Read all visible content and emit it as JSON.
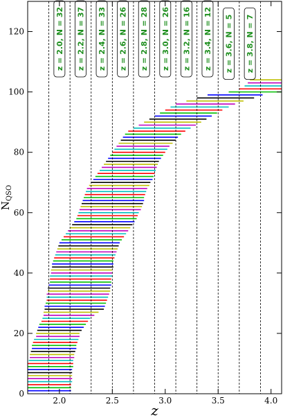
{
  "chart_data": {
    "type": "line",
    "title": "",
    "xlabel": "z",
    "ylabel": "N",
    "ylabel_sub": "QSO",
    "xlim": [
      1.7,
      4.1
    ],
    "ylim": [
      0,
      130
    ],
    "grid": false,
    "x_ticks": [
      2.0,
      2.5,
      3.0,
      3.5,
      4.0
    ],
    "x_tick_labels": [
      "2.0",
      "2.5",
      "3.0",
      "3.5",
      "4.0"
    ],
    "y_ticks": [
      0,
      20,
      40,
      60,
      80,
      100,
      120
    ],
    "y_tick_labels": [
      "0",
      "20",
      "40",
      "60",
      "80",
      "100",
      "120"
    ],
    "bin_edges": [
      1.9,
      2.1,
      2.3,
      2.5,
      2.7,
      2.9,
      3.1,
      3.3,
      3.5,
      3.7,
      3.9
    ],
    "bin_labels": [
      "z = 2.0, N = 32",
      "z = 2.2, N = 37",
      "z = 2.4, N = 33",
      "z = 2.6, N = 26",
      "z = 2.8, N = 28",
      "z = 3.0, N = 26",
      "z = 3.2, N = 16",
      "z = 3.4, N = 12",
      "z = 3.6, N = 5",
      "z = 3.8, N = 7"
    ],
    "colors": [
      "#0000ff",
      "#00bf00",
      "#ff0000",
      "#00bfbf",
      "#bf00bf",
      "#bfbf00",
      "#000000"
    ],
    "segments": [
      [
        1.7,
        2.11
      ],
      [
        1.7,
        2.11
      ],
      [
        1.7,
        2.11
      ],
      [
        1.7,
        2.12
      ],
      [
        1.7,
        2.12
      ],
      [
        1.7,
        2.12
      ],
      [
        1.7,
        2.12
      ],
      [
        1.7,
        2.12
      ],
      [
        1.7,
        2.13
      ],
      [
        1.7,
        2.13
      ],
      [
        1.71,
        2.13
      ],
      [
        1.72,
        2.14
      ],
      [
        1.72,
        2.14
      ],
      [
        1.73,
        2.15
      ],
      [
        1.74,
        2.16
      ],
      [
        1.74,
        2.16
      ],
      [
        1.75,
        2.17
      ],
      [
        1.76,
        2.18
      ],
      [
        1.78,
        2.19
      ],
      [
        1.78,
        2.19
      ],
      [
        1.79,
        2.21
      ],
      [
        1.8,
        2.23
      ],
      [
        1.81,
        2.25
      ],
      [
        1.83,
        2.27
      ],
      [
        1.84,
        2.29
      ],
      [
        1.85,
        2.33
      ],
      [
        1.85,
        2.37
      ],
      [
        1.86,
        2.42
      ],
      [
        1.86,
        2.43
      ],
      [
        1.87,
        2.44
      ],
      [
        1.88,
        2.45
      ],
      [
        1.88,
        2.46
      ],
      [
        1.88,
        2.47
      ],
      [
        1.89,
        2.48
      ],
      [
        1.89,
        2.48
      ],
      [
        1.9,
        2.49
      ],
      [
        1.91,
        2.49
      ],
      [
        1.91,
        2.49
      ],
      [
        1.91,
        2.5
      ],
      [
        1.92,
        2.5
      ],
      [
        1.92,
        2.5
      ],
      [
        1.93,
        2.51
      ],
      [
        1.93,
        2.51
      ],
      [
        1.94,
        2.51
      ],
      [
        1.95,
        2.52
      ],
      [
        1.96,
        2.53
      ],
      [
        1.97,
        2.54
      ],
      [
        1.98,
        2.55
      ],
      [
        1.99,
        2.56
      ],
      [
        2.0,
        2.57
      ],
      [
        2.02,
        2.59
      ],
      [
        2.04,
        2.61
      ],
      [
        2.06,
        2.63
      ],
      [
        2.08,
        2.65
      ],
      [
        2.1,
        2.67
      ],
      [
        2.12,
        2.69
      ],
      [
        2.14,
        2.71
      ],
      [
        2.16,
        2.73
      ],
      [
        2.17,
        2.74
      ],
      [
        2.18,
        2.75
      ],
      [
        2.19,
        2.77
      ],
      [
        2.2,
        2.78
      ],
      [
        2.21,
        2.79
      ],
      [
        2.22,
        2.8
      ],
      [
        2.23,
        2.8
      ],
      [
        2.24,
        2.81
      ],
      [
        2.25,
        2.82
      ],
      [
        2.26,
        2.83
      ],
      [
        2.28,
        2.85
      ],
      [
        2.3,
        2.86
      ],
      [
        2.32,
        2.88
      ],
      [
        2.34,
        2.89
      ],
      [
        2.36,
        2.9
      ],
      [
        2.38,
        2.91
      ],
      [
        2.4,
        2.92
      ],
      [
        2.42,
        2.93
      ],
      [
        2.44,
        2.94
      ],
      [
        2.46,
        2.96
      ],
      [
        2.48,
        2.98
      ],
      [
        2.5,
        3.0
      ],
      [
        2.52,
        3.02
      ],
      [
        2.54,
        3.04
      ],
      [
        2.56,
        3.07
      ],
      [
        2.58,
        3.1
      ],
      [
        2.6,
        3.12
      ],
      [
        2.62,
        3.15
      ],
      [
        2.65,
        3.19
      ],
      [
        2.7,
        3.24
      ],
      [
        2.75,
        3.29
      ],
      [
        2.8,
        3.34
      ],
      [
        2.85,
        3.39
      ],
      [
        2.9,
        3.44
      ],
      [
        2.95,
        3.49
      ],
      [
        3.0,
        3.54
      ],
      [
        3.05,
        3.6
      ],
      [
        3.1,
        3.66
      ],
      [
        3.2,
        3.74
      ],
      [
        3.3,
        3.84
      ],
      [
        3.4,
        3.92
      ],
      [
        3.6,
        4.1
      ],
      [
        3.7,
        4.1
      ],
      [
        3.75,
        4.1
      ],
      [
        3.78,
        4.1
      ],
      [
        3.8,
        4.1
      ]
    ]
  }
}
